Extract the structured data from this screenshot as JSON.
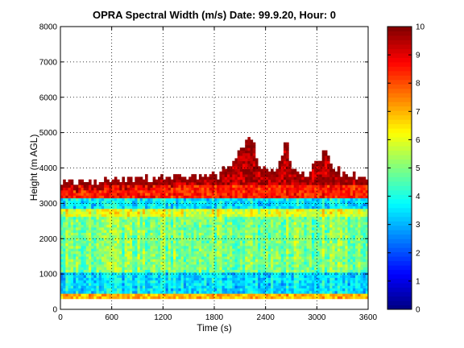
{
  "chart_data": {
    "type": "heatmap",
    "title": "OPRA Spectral Width (m/s)  Date: 99.9.20, Hour: 0",
    "xlabel": "Time (s)",
    "ylabel": "Height (m AGL)",
    "xlim": [
      0,
      3600
    ],
    "ylim": [
      0,
      8000
    ],
    "xticks": [
      "0",
      "600",
      "1200",
      "1800",
      "2400",
      "3000",
      "3600"
    ],
    "yticks": [
      "0",
      "1000",
      "2000",
      "3000",
      "4000",
      "5000",
      "6000",
      "7000",
      "8000"
    ],
    "grid": true,
    "colormap": "jet",
    "clim": [
      0,
      10
    ],
    "colorbar_ticks": [
      "0",
      "1",
      "2",
      "3",
      "4",
      "5",
      "6",
      "7",
      "8",
      "9",
      "10"
    ],
    "data_bottom_height": 300,
    "layers": [
      {
        "height_range": [
          300,
          450
        ],
        "typical_value": 7.0
      },
      {
        "height_range": [
          450,
          1000
        ],
        "typical_value": 3.5
      },
      {
        "height_range": [
          1000,
          2600
        ],
        "typical_value": 5.0
      },
      {
        "height_range": [
          2600,
          2800
        ],
        "typical_value": 6.0
      },
      {
        "height_range": [
          2800,
          3100
        ],
        "typical_value": 3.6
      },
      {
        "height_range": [
          3100,
          3500
        ],
        "typical_value": 8.5
      },
      {
        "height_range": [
          3500,
          4000
        ],
        "typical_value": 9.5
      }
    ],
    "top_profile": {
      "time": [
        0,
        300,
        600,
        900,
        1200,
        1500,
        1800,
        1950,
        2100,
        2250,
        2300,
        2400,
        2550,
        2650,
        2700,
        2800,
        2900,
        3000,
        3100,
        3200,
        3300,
        3450,
        3600
      ],
      "height": [
        3700,
        3600,
        3750,
        3700,
        3800,
        3750,
        3800,
        4000,
        4600,
        4900,
        4200,
        4000,
        4100,
        4800,
        4000,
        3900,
        3900,
        4200,
        4500,
        4100,
        3900,
        3800,
        3600
      ]
    }
  }
}
